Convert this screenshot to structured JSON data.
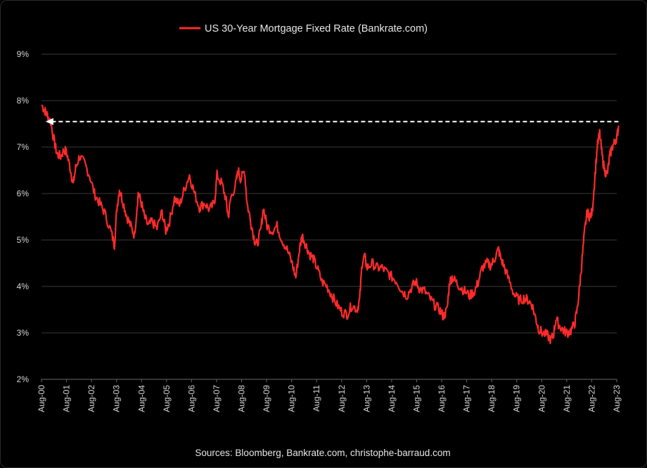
{
  "chart_data": {
    "type": "line",
    "title": "",
    "xlabel": "",
    "ylabel": "",
    "ylim": [
      2,
      9
    ],
    "y_ticks": [
      {
        "value": 2,
        "label": "2%"
      },
      {
        "value": 3,
        "label": "3%"
      },
      {
        "value": 4,
        "label": "4%"
      },
      {
        "value": 5,
        "label": "5%"
      },
      {
        "value": 6,
        "label": "6%"
      },
      {
        "value": 7,
        "label": "7%"
      },
      {
        "value": 8,
        "label": "8%"
      },
      {
        "value": 9,
        "label": "9%"
      }
    ],
    "x_ticks": [
      "Aug-00",
      "Aug-01",
      "Aug-02",
      "Aug-03",
      "Aug-04",
      "Aug-05",
      "Aug-06",
      "Aug-07",
      "Aug-08",
      "Aug-09",
      "Aug-10",
      "Aug-11",
      "Aug-12",
      "Aug-13",
      "Aug-14",
      "Aug-15",
      "Aug-16",
      "Aug-17",
      "Aug-18",
      "Aug-19",
      "Aug-20",
      "Aug-21",
      "Aug-22",
      "Aug-23"
    ],
    "grid": "horizontal",
    "legend_position": "top-center",
    "series": [
      {
        "name": "US 30-Year Mortgage Fixed Rate (Bankrate.com)",
        "color": "#ff2a2a",
        "x_unit": "year",
        "points": [
          [
            2000.6,
            7.9
          ],
          [
            2000.7,
            7.8
          ],
          [
            2000.8,
            7.7
          ],
          [
            2000.95,
            7.55
          ],
          [
            2001.1,
            7.1
          ],
          [
            2001.2,
            6.85
          ],
          [
            2001.35,
            6.8
          ],
          [
            2001.5,
            6.95
          ],
          [
            2001.6,
            6.85
          ],
          [
            2001.75,
            6.5
          ],
          [
            2001.85,
            6.2
          ],
          [
            2001.95,
            6.55
          ],
          [
            2002.1,
            6.8
          ],
          [
            2002.3,
            6.65
          ],
          [
            2002.5,
            6.4
          ],
          [
            2002.7,
            6.0
          ],
          [
            2002.9,
            5.8
          ],
          [
            2003.1,
            5.6
          ],
          [
            2003.35,
            5.2
          ],
          [
            2003.5,
            4.9
          ],
          [
            2003.6,
            5.7
          ],
          [
            2003.7,
            6.1
          ],
          [
            2003.85,
            5.8
          ],
          [
            2004.0,
            5.5
          ],
          [
            2004.15,
            5.3
          ],
          [
            2004.3,
            5.1
          ],
          [
            2004.45,
            6.0
          ],
          [
            2004.55,
            5.85
          ],
          [
            2004.7,
            5.5
          ],
          [
            2004.85,
            5.3
          ],
          [
            2005.0,
            5.4
          ],
          [
            2005.2,
            5.25
          ],
          [
            2005.4,
            5.6
          ],
          [
            2005.55,
            5.2
          ],
          [
            2005.7,
            5.4
          ],
          [
            2005.9,
            5.9
          ],
          [
            2006.1,
            5.75
          ],
          [
            2006.3,
            6.1
          ],
          [
            2006.5,
            6.4
          ],
          [
            2006.7,
            6.0
          ],
          [
            2006.9,
            5.7
          ],
          [
            2007.1,
            5.8
          ],
          [
            2007.3,
            5.65
          ],
          [
            2007.5,
            5.8
          ],
          [
            2007.6,
            6.4
          ],
          [
            2007.8,
            6.2
          ],
          [
            2007.95,
            5.9
          ],
          [
            2008.05,
            5.5
          ],
          [
            2008.15,
            5.9
          ],
          [
            2008.35,
            6.2
          ],
          [
            2008.45,
            6.5
          ],
          [
            2008.55,
            6.3
          ],
          [
            2008.7,
            6.5
          ],
          [
            2008.8,
            5.8
          ],
          [
            2008.95,
            5.4
          ],
          [
            2009.1,
            5.0
          ],
          [
            2009.2,
            4.9
          ],
          [
            2009.35,
            5.2
          ],
          [
            2009.45,
            5.7
          ],
          [
            2009.6,
            5.3
          ],
          [
            2009.8,
            5.2
          ],
          [
            2010.0,
            5.3
          ],
          [
            2010.2,
            5.0
          ],
          [
            2010.4,
            4.8
          ],
          [
            2010.6,
            4.5
          ],
          [
            2010.75,
            4.2
          ],
          [
            2010.9,
            4.8
          ],
          [
            2011.0,
            5.1
          ],
          [
            2011.15,
            4.9
          ],
          [
            2011.3,
            4.7
          ],
          [
            2011.45,
            4.6
          ],
          [
            2011.6,
            4.4
          ],
          [
            2011.8,
            4.1
          ],
          [
            2012.0,
            4.0
          ],
          [
            2012.2,
            3.8
          ],
          [
            2012.4,
            3.6
          ],
          [
            2012.6,
            3.45
          ],
          [
            2012.8,
            3.4
          ],
          [
            2013.0,
            3.6
          ],
          [
            2013.2,
            3.5
          ],
          [
            2013.3,
            3.7
          ],
          [
            2013.4,
            4.5
          ],
          [
            2013.5,
            4.65
          ],
          [
            2013.6,
            4.4
          ],
          [
            2013.8,
            4.5
          ],
          [
            2014.0,
            4.4
          ],
          [
            2014.2,
            4.4
          ],
          [
            2014.4,
            4.3
          ],
          [
            2014.6,
            4.2
          ],
          [
            2014.8,
            4.1
          ],
          [
            2015.0,
            3.9
          ],
          [
            2015.2,
            3.8
          ],
          [
            2015.4,
            4.0
          ],
          [
            2015.55,
            4.1
          ],
          [
            2015.7,
            3.95
          ],
          [
            2015.9,
            3.9
          ],
          [
            2016.1,
            3.75
          ],
          [
            2016.3,
            3.6
          ],
          [
            2016.5,
            3.5
          ],
          [
            2016.65,
            3.35
          ],
          [
            2016.8,
            3.5
          ],
          [
            2016.9,
            4.1
          ],
          [
            2017.0,
            4.2
          ],
          [
            2017.15,
            4.1
          ],
          [
            2017.3,
            4.0
          ],
          [
            2017.5,
            3.9
          ],
          [
            2017.7,
            3.8
          ],
          [
            2017.9,
            3.9
          ],
          [
            2018.05,
            4.1
          ],
          [
            2018.2,
            4.4
          ],
          [
            2018.4,
            4.5
          ],
          [
            2018.55,
            4.45
          ],
          [
            2018.7,
            4.6
          ],
          [
            2018.85,
            4.8
          ],
          [
            2018.95,
            4.6
          ],
          [
            2019.1,
            4.4
          ],
          [
            2019.3,
            4.1
          ],
          [
            2019.5,
            3.8
          ],
          [
            2019.7,
            3.7
          ],
          [
            2019.9,
            3.75
          ],
          [
            2020.05,
            3.7
          ],
          [
            2020.2,
            3.6
          ],
          [
            2020.35,
            3.3
          ],
          [
            2020.45,
            3.1
          ],
          [
            2020.6,
            3.0
          ],
          [
            2020.8,
            2.95
          ],
          [
            2020.95,
            2.85
          ],
          [
            2021.05,
            2.95
          ],
          [
            2021.15,
            3.3
          ],
          [
            2021.3,
            3.15
          ],
          [
            2021.45,
            3.05
          ],
          [
            2021.6,
            3.0
          ],
          [
            2021.75,
            3.05
          ],
          [
            2021.9,
            3.2
          ],
          [
            2022.0,
            3.5
          ],
          [
            2022.1,
            4.0
          ],
          [
            2022.2,
            4.6
          ],
          [
            2022.3,
            5.2
          ],
          [
            2022.4,
            5.6
          ],
          [
            2022.5,
            5.5
          ],
          [
            2022.6,
            5.6
          ],
          [
            2022.7,
            6.3
          ],
          [
            2022.8,
            7.0
          ],
          [
            2022.9,
            7.3
          ],
          [
            2023.0,
            6.8
          ],
          [
            2023.1,
            6.5
          ],
          [
            2023.2,
            6.4
          ],
          [
            2023.3,
            6.8
          ],
          [
            2023.4,
            7.0
          ],
          [
            2023.5,
            7.1
          ],
          [
            2023.6,
            7.25
          ],
          [
            2023.65,
            7.45
          ]
        ]
      }
    ],
    "annotations": [
      {
        "type": "dashed-arrow",
        "color": "#ffffff",
        "y": 7.55,
        "x_from": 2023.65,
        "x_to": 2000.75
      }
    ],
    "source": "Sources: Bloomberg, Bankrate.com, christophe-barraud.com"
  }
}
